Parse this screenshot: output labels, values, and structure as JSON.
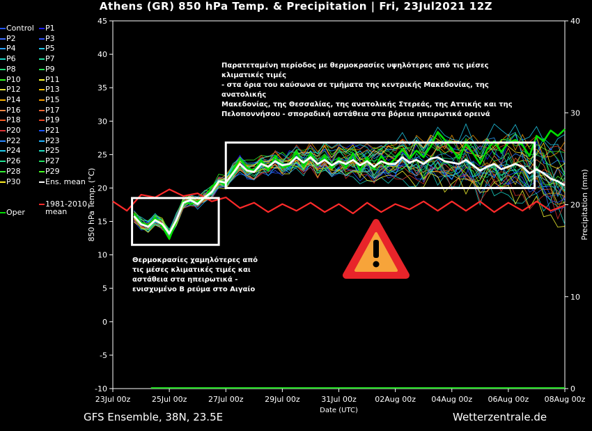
{
  "header": {
    "title": "Athens  (GR)  850 hPa Temp. & Precipitation | Fri, 23Jul2021 12Z"
  },
  "footer": {
    "model": "GFS Ensemble, 38N, 23.5E",
    "site": "Wetterzentrale.de"
  },
  "colors": {
    "background": "#000000",
    "ens_mean": "#ffffff",
    "climate_mean": "#ff2a2a",
    "oper": "#00dd00",
    "highlight_box": "#ffffff",
    "warning_red": "#e8242a",
    "warning_orange": "#f7a43a"
  },
  "legend": {
    "items": [
      {
        "label": "Control",
        "color": "#2255ff"
      },
      {
        "label": "P1",
        "color": "#1a1aff"
      },
      {
        "label": "P2",
        "color": "#3b6bff"
      },
      {
        "label": "P3",
        "color": "#2f52ff"
      },
      {
        "label": "P4",
        "color": "#2aa0ff"
      },
      {
        "label": "P5",
        "color": "#22c6e8"
      },
      {
        "label": "P6",
        "color": "#18d6c8"
      },
      {
        "label": "P7",
        "color": "#1ee0a0"
      },
      {
        "label": "P8",
        "color": "#22e07a"
      },
      {
        "label": "P9",
        "color": "#22e050"
      },
      {
        "label": "P10",
        "color": "#33ff22"
      },
      {
        "label": "P11",
        "color": "#ffff33"
      },
      {
        "label": "P12",
        "color": "#e6e63a"
      },
      {
        "label": "P13",
        "color": "#f0c000"
      },
      {
        "label": "P14",
        "color": "#f4b000"
      },
      {
        "label": "P15",
        "color": "#f49a00"
      },
      {
        "label": "P16",
        "color": "#ee8844"
      },
      {
        "label": "P17",
        "color": "#ee6633"
      },
      {
        "label": "P18",
        "color": "#f05a22"
      },
      {
        "label": "P19",
        "color": "#e84422"
      },
      {
        "label": "P20",
        "color": "#dd3333"
      },
      {
        "label": "P21",
        "color": "#1a55ff"
      },
      {
        "label": "P22",
        "color": "#2a88ff"
      },
      {
        "label": "P23",
        "color": "#22b4ff"
      },
      {
        "label": "P24",
        "color": "#22d0ee"
      },
      {
        "label": "P25",
        "color": "#22e0c0"
      },
      {
        "label": "P26",
        "color": "#22e090"
      },
      {
        "label": "P27",
        "color": "#22e060"
      },
      {
        "label": "P28",
        "color": "#33ee33"
      },
      {
        "label": "P29",
        "color": "#44ff22"
      },
      {
        "label": "P30",
        "color": "#ffee22"
      },
      {
        "label": "Ens. mean",
        "color": "#ffffff"
      },
      {
        "label": "Oper",
        "color": "#00dd00"
      },
      {
        "label": "1981-2010",
        "color": "#ff2a2a"
      },
      {
        "label": "mean",
        "color": "#ff2a2a"
      }
    ]
  },
  "annotations": {
    "warm": [
      "Παρατεταμένη περίοδος με θερμοκρασίες υψηλότερες από τις μέσες κλιματικές τιμές",
      "- στα όρια του καύσωνα σε τμήματα της κεντρικής Μακεδονίας, της ανατολικής",
      "Μακεδονίας, της Θεσσαλίας, της ανατολικής Στερεάς, της Αττικής και της",
      "Πελοποννήσου - σποραδική αστάθεια στα βόρεια ηπειρωτικά ορεινά"
    ],
    "cool": [
      "Θερμοκρασίες χαμηλότερες από",
      "τις μέσες κλιματικές τιμές και",
      "αστάθεια στα ηπειρωτικά -",
      "ενισχυμένο Β ρεύμα στο Αιγαίο"
    ]
  },
  "chart_data": {
    "type": "line",
    "xlabel": "Date (UTC)",
    "ylabel": "850 hPa Temp. (°C)",
    "y2label": "Precipitation (mm)",
    "x_range_days": [
      0,
      16
    ],
    "x_ticks": [
      {
        "day": 0,
        "label": "23Jul 00z"
      },
      {
        "day": 2,
        "label": "25Jul 00z"
      },
      {
        "day": 4,
        "label": "27Jul 00z"
      },
      {
        "day": 6,
        "label": "29Jul 00z"
      },
      {
        "day": 8,
        "label": "31Jul 00z"
      },
      {
        "day": 10,
        "label": "02Aug 00z"
      },
      {
        "day": 12,
        "label": "04Aug 00z"
      },
      {
        "day": 14,
        "label": "06Aug 00z"
      },
      {
        "day": 16,
        "label": "08Aug 00z"
      }
    ],
    "ylim": [
      -10,
      45
    ],
    "y_ticks": [
      -10,
      -5,
      0,
      5,
      10,
      15,
      20,
      25,
      30,
      35,
      40,
      45
    ],
    "y2lim": [
      0,
      40
    ],
    "y2_ticks": [
      0,
      10,
      20,
      30,
      40
    ],
    "grid": false,
    "legend_position": "left",
    "ens_mean": {
      "x": [
        0.75,
        1,
        1.25,
        1.5,
        1.75,
        2,
        2.25,
        2.5,
        2.75,
        3,
        3.25,
        3.5,
        3.75,
        4,
        4.25,
        4.5,
        4.75,
        5,
        5.25,
        5.5,
        5.75,
        6,
        6.25,
        6.5,
        6.75,
        7,
        7.25,
        7.5,
        7.75,
        8,
        8.25,
        8.5,
        8.75,
        9,
        9.25,
        9.5,
        9.75,
        10,
        10.25,
        10.5,
        10.75,
        11,
        11.25,
        11.5,
        11.75,
        12,
        12.25,
        12.5,
        12.75,
        13,
        13.25,
        13.5,
        13.75,
        14,
        14.25,
        14.5,
        14.75,
        15,
        15.25,
        15.5,
        15.75,
        16
      ],
      "y": [
        15.8,
        14.6,
        14.2,
        15.2,
        14.6,
        13.2,
        15.2,
        17.8,
        18.2,
        17.6,
        18.6,
        19.4,
        21.0,
        20.8,
        22.2,
        23.6,
        22.6,
        22.4,
        23.6,
        23.2,
        24.0,
        23.4,
        23.6,
        24.6,
        23.8,
        24.6,
        23.6,
        24.2,
        23.4,
        24.0,
        23.6,
        24.2,
        23.4,
        24.0,
        23.2,
        24.0,
        23.6,
        23.6,
        24.6,
        23.8,
        24.2,
        23.6,
        24.4,
        24.6,
        24.0,
        23.8,
        23.6,
        24.2,
        23.4,
        22.6,
        23.2,
        23.6,
        22.8,
        23.2,
        23.6,
        23.2,
        22.2,
        22.8,
        22.2,
        21.4,
        21.0,
        20.4
      ]
    },
    "oper": {
      "x": [
        0.75,
        1,
        1.25,
        1.5,
        1.75,
        2,
        2.25,
        2.5,
        2.75,
        3,
        3.25,
        3.5,
        3.75,
        4,
        4.25,
        4.5,
        4.75,
        5,
        5.25,
        5.5,
        5.75,
        6,
        6.25,
        6.5,
        6.75,
        7,
        7.25,
        7.5,
        7.75,
        8,
        8.25,
        8.5,
        8.75,
        9,
        9.25,
        9.5,
        9.75,
        10,
        10.25,
        10.5,
        10.75,
        11,
        11.25,
        11.5,
        11.75,
        12,
        12.25,
        12.5,
        12.75,
        13,
        13.25,
        13.5,
        13.75,
        14,
        14.25,
        14.5,
        14.75,
        15,
        15.25,
        15.5,
        15.75,
        16
      ],
      "y": [
        16.2,
        14.8,
        14.4,
        15.6,
        14.2,
        12.4,
        15.0,
        18.0,
        17.6,
        18.0,
        18.4,
        20.2,
        21.0,
        20.4,
        22.6,
        24.4,
        23.0,
        22.6,
        24.2,
        22.6,
        24.8,
        23.0,
        23.4,
        25.4,
        23.2,
        25.2,
        23.4,
        24.8,
        23.0,
        24.4,
        23.0,
        25.2,
        22.6,
        24.6,
        22.8,
        24.8,
        23.4,
        24.4,
        25.8,
        24.4,
        25.6,
        24.6,
        26.2,
        28.4,
        27.2,
        25.8,
        24.4,
        26.6,
        25.2,
        23.6,
        25.8,
        27.0,
        25.4,
        26.8,
        27.2,
        26.4,
        24.8,
        27.8,
        27.0,
        28.6,
        27.8,
        28.8
      ]
    },
    "climate_mean": {
      "x": [
        0,
        0.5,
        1,
        1.5,
        2,
        2.5,
        3,
        3.5,
        4,
        4.5,
        5,
        5.5,
        6,
        6.5,
        7,
        7.5,
        8,
        8.5,
        9,
        9.5,
        10,
        10.5,
        11,
        11.5,
        12,
        12.5,
        13,
        13.5,
        14,
        14.5,
        15,
        15.5,
        16
      ],
      "y": [
        18.0,
        16.6,
        19.0,
        18.6,
        19.8,
        18.8,
        19.2,
        18.0,
        18.6,
        17.0,
        17.8,
        16.4,
        17.6,
        16.6,
        17.8,
        16.4,
        17.6,
        16.2,
        17.8,
        16.4,
        17.6,
        16.8,
        18.0,
        16.6,
        18.0,
        16.6,
        18.0,
        16.4,
        17.8,
        16.6,
        18.0,
        16.6,
        17.4
      ]
    },
    "boxes": [
      {
        "x0": 0.68,
        "x1": 3.75,
        "y0": 11.5,
        "y1": 18.5
      },
      {
        "x0": 4.0,
        "x1": 14.93,
        "y0": 20.0,
        "y1": 26.8
      }
    ]
  }
}
